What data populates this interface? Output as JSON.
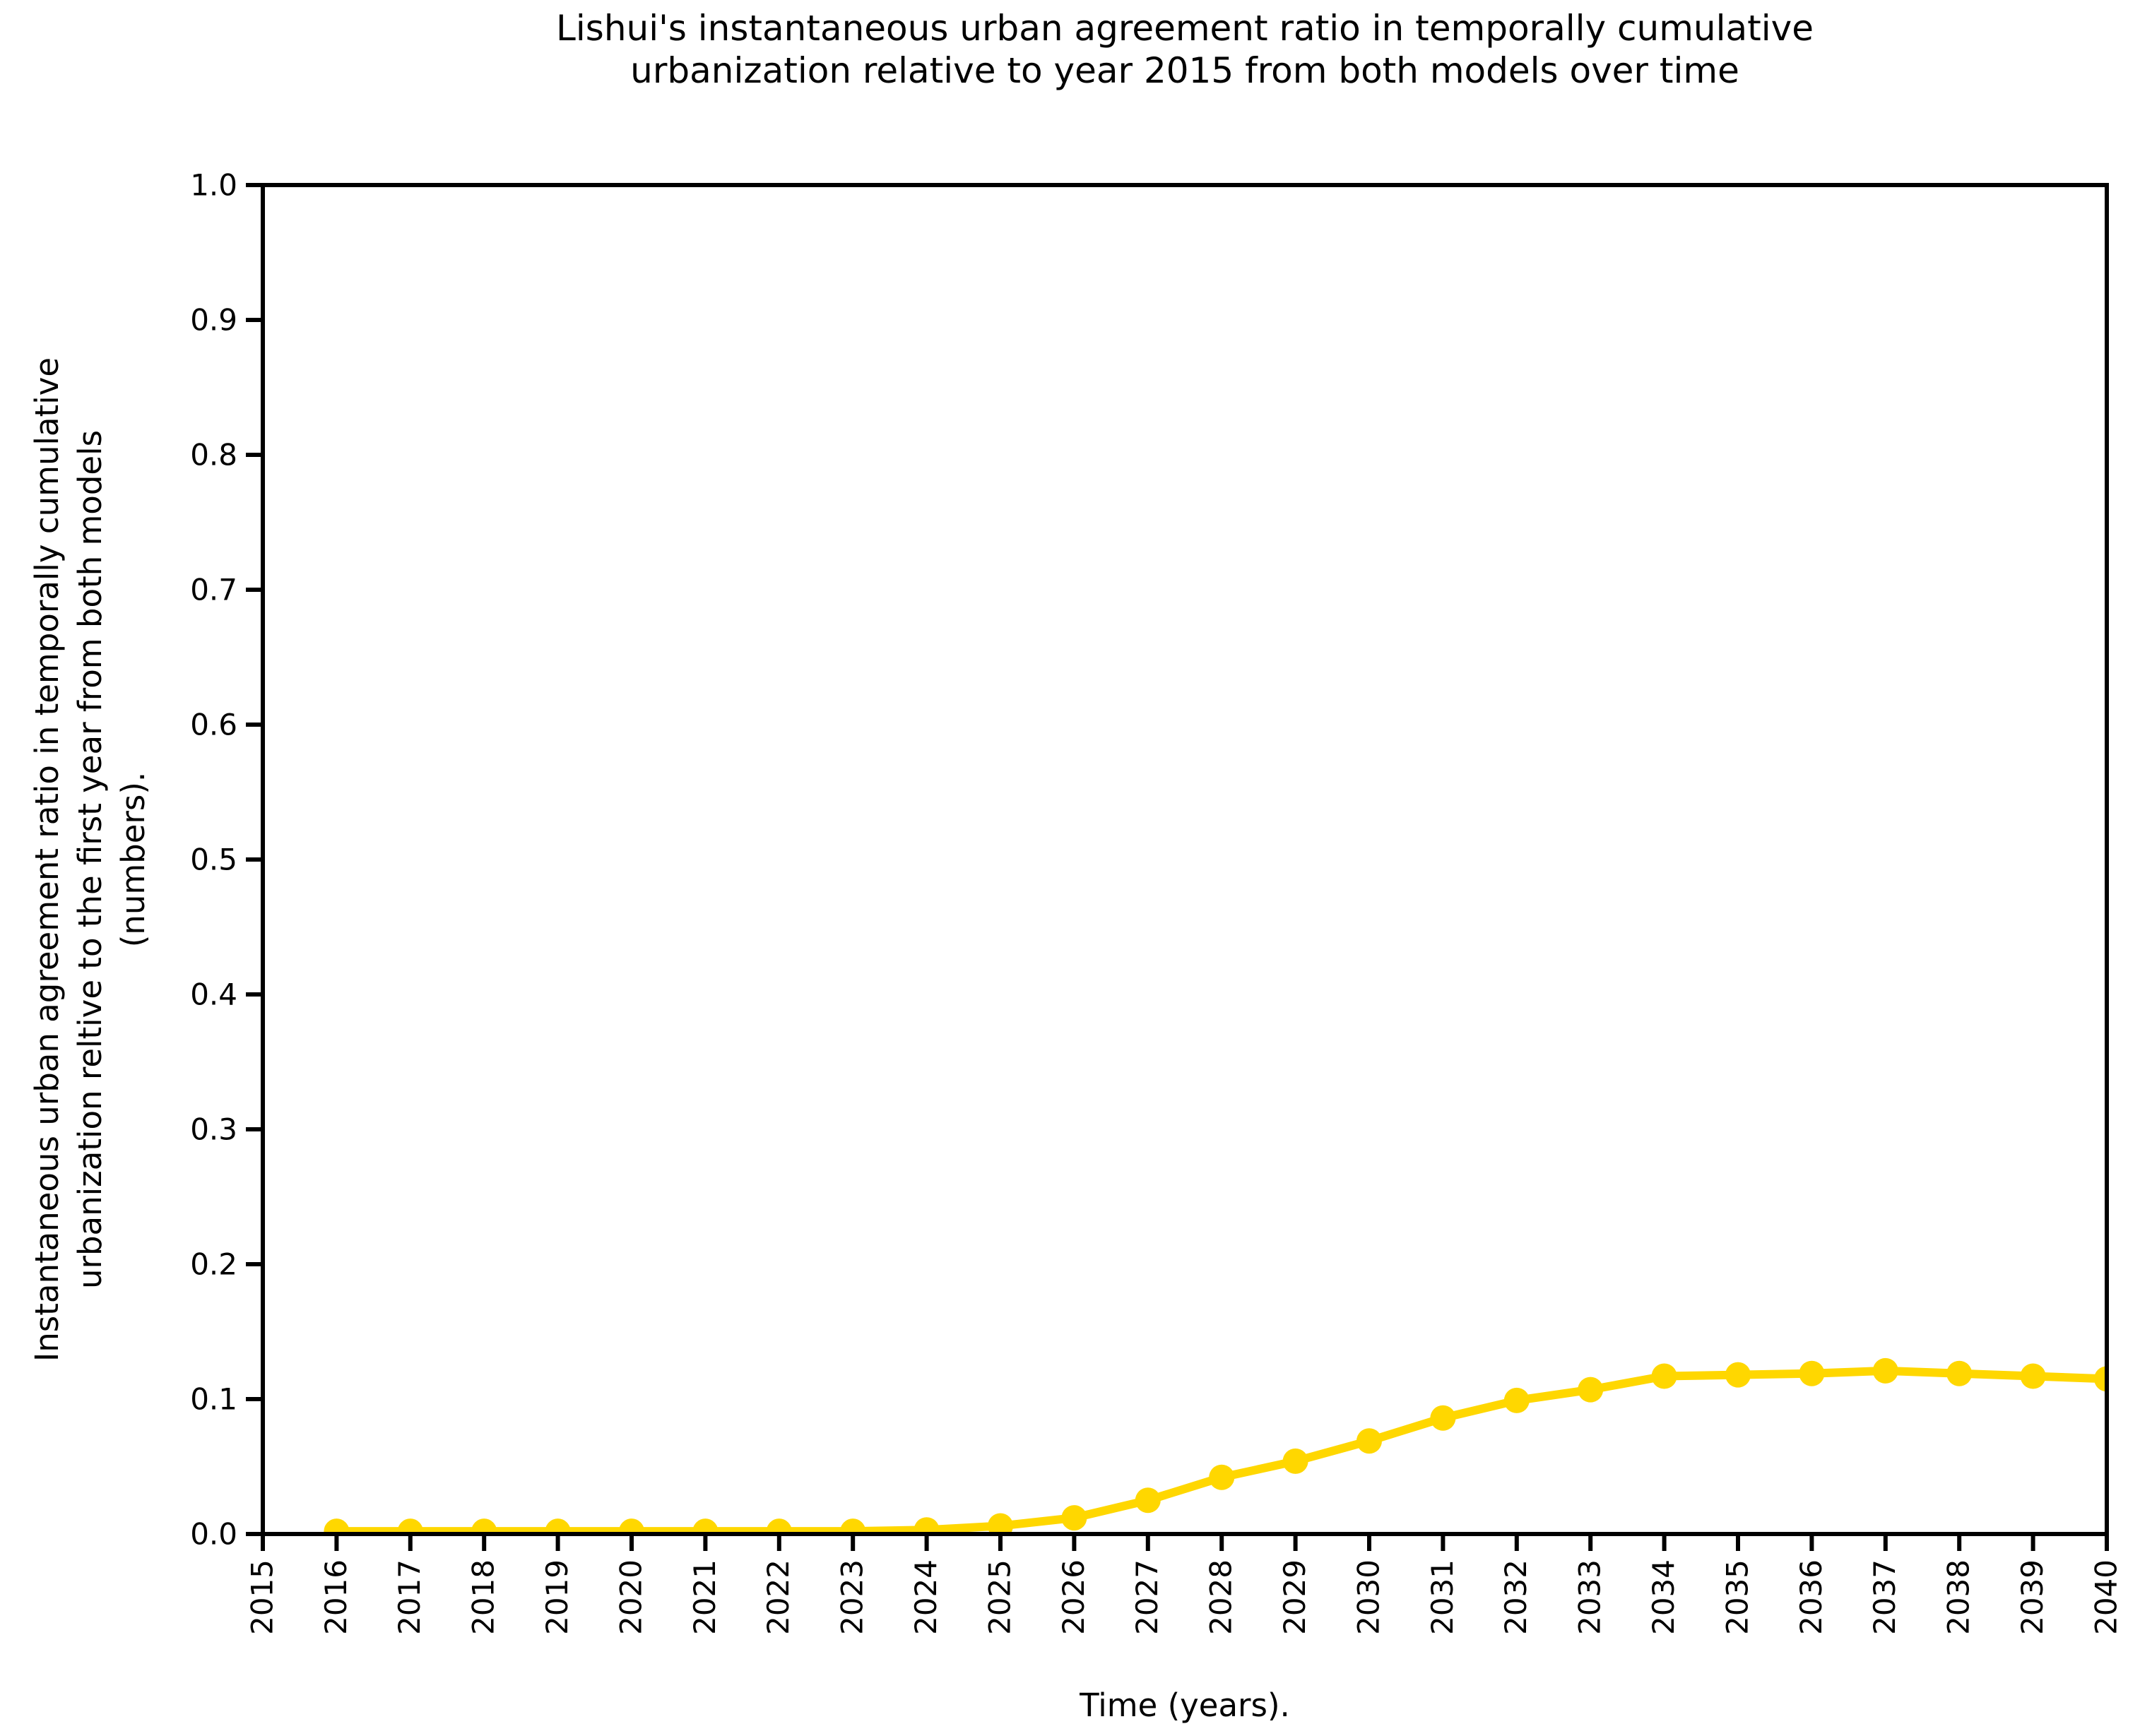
{
  "figure": {
    "title_lines": [
      "Lishui's instantaneous urban agreement ratio in temporally cumulative",
      "urbanization relative to year 2015 from both models over time"
    ],
    "xlabel": "Time (years).",
    "ylabel_lines": [
      "Instantaneous urban agreement ratio in temporally cumulative",
      "urbanization reltive to the first year from both models",
      "(numbers)."
    ]
  },
  "chart_data": {
    "type": "line",
    "title": "Lishui's instantaneous urban agreement ratio in temporally cumulative urbanization relative to year 2015 from both models over time",
    "xlabel": "Time (years).",
    "ylabel": "Instantaneous urban agreement ratio in temporally cumulative urbanization reltive to the first year from both models (numbers).",
    "xlim": [
      2015,
      2040
    ],
    "ylim": [
      0.0,
      1.0
    ],
    "x_ticks": [
      2015,
      2016,
      2017,
      2018,
      2019,
      2020,
      2021,
      2022,
      2023,
      2024,
      2025,
      2026,
      2027,
      2028,
      2029,
      2030,
      2031,
      2032,
      2033,
      2034,
      2035,
      2036,
      2037,
      2038,
      2039,
      2040
    ],
    "x_tick_rotation": 90,
    "y_ticks": [
      0.0,
      0.1,
      0.2,
      0.3,
      0.4,
      0.5,
      0.6,
      0.7,
      0.8,
      0.9,
      1.0
    ],
    "grid": false,
    "legend": false,
    "axis_color": "#000000",
    "text_color": "#000000",
    "series": [
      {
        "name": "instantaneous urban agreement ratio (both models)",
        "color": "#FFD700",
        "marker": "circle",
        "x": [
          2016,
          2017,
          2018,
          2019,
          2020,
          2021,
          2022,
          2023,
          2024,
          2025,
          2026,
          2027,
          2028,
          2029,
          2030,
          2031,
          2032,
          2033,
          2034,
          2035,
          2036,
          2037,
          2038,
          2039,
          2040
        ],
        "y": [
          0.002,
          0.002,
          0.002,
          0.002,
          0.002,
          0.002,
          0.002,
          0.002,
          0.003,
          0.006,
          0.012,
          0.025,
          0.042,
          0.054,
          0.069,
          0.086,
          0.099,
          0.107,
          0.117,
          0.118,
          0.119,
          0.121,
          0.119,
          0.117,
          0.115
        ]
      }
    ]
  }
}
